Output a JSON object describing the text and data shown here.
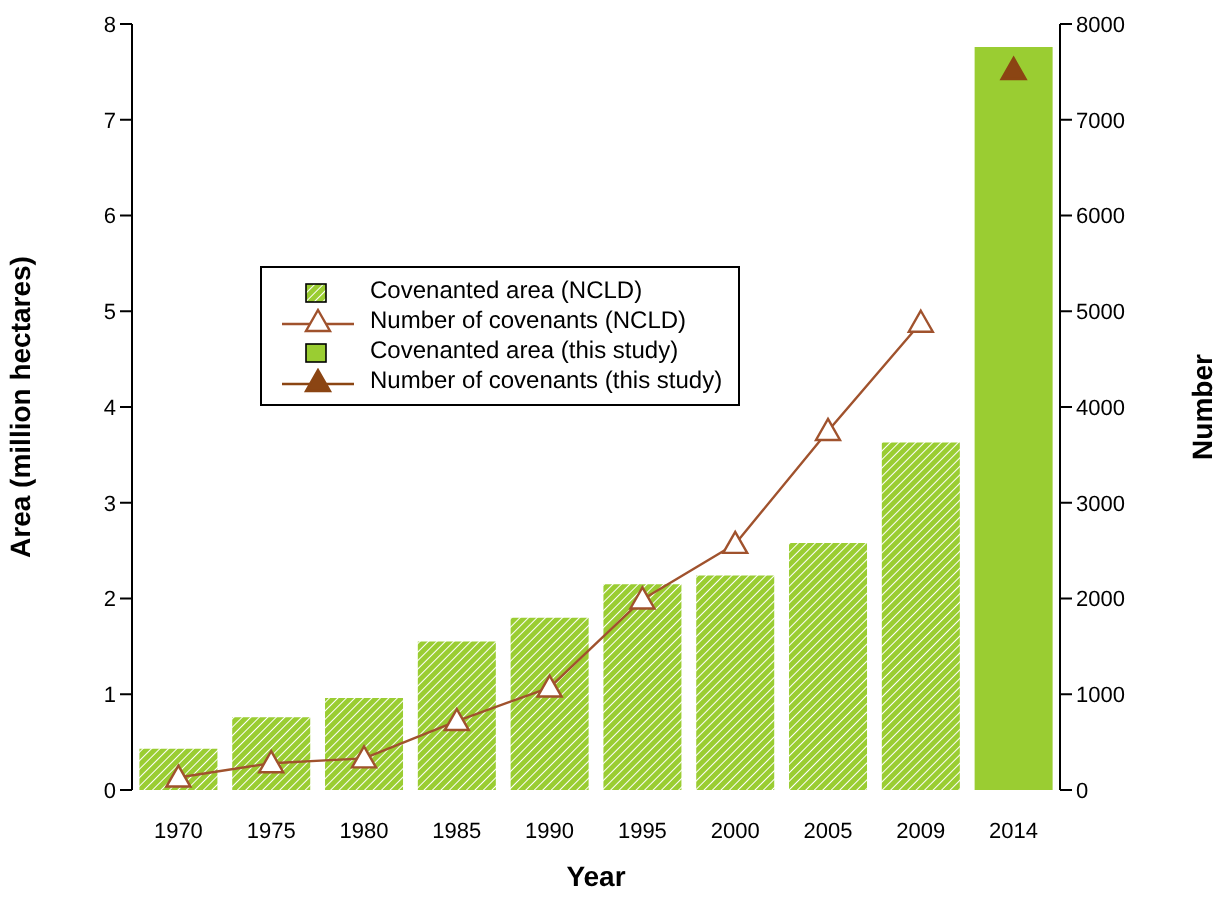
{
  "chart_data": {
    "type": "bar",
    "xlabel": "Year",
    "ylabel": "Area (million hectares)",
    "y2label": "Number",
    "categories": [
      "1970",
      "1975",
      "1980",
      "1985",
      "1990",
      "1995",
      "2000",
      "2005",
      "2009",
      "2014"
    ],
    "series": [
      {
        "name": "Covenanted area (NCLD)",
        "color": "#9acd32",
        "values": [
          0.43,
          0.76,
          0.96,
          1.55,
          1.8,
          2.15,
          2.24,
          2.58,
          3.63,
          null
        ]
      },
      {
        "name": "Number of covenants (NCLD)",
        "type": "line",
        "axis": "y2",
        "color": "#a0522d",
        "marker": "triangle",
        "values": [
          130,
          280,
          330,
          720,
          1070,
          1990,
          2570,
          3750,
          4880,
          null
        ]
      },
      {
        "name": "Covenanted area (this study)",
        "color": "#9acd32",
        "values": [
          null,
          null,
          null,
          null,
          null,
          null,
          null,
          null,
          null,
          7.76
        ]
      },
      {
        "name": "Number of covenants (this study)",
        "type": "line",
        "axis": "y2",
        "color": "#8b4513",
        "marker": "triangle",
        "values": [
          null,
          null,
          null,
          null,
          null,
          null,
          null,
          null,
          null,
          7520
        ]
      }
    ],
    "ylim": [
      0,
      8
    ],
    "yticks": [
      0,
      1,
      2,
      3,
      4,
      5,
      6,
      7,
      8
    ],
    "y2lim": [
      0,
      8000
    ],
    "y2ticks": [
      0,
      1000,
      2000,
      3000,
      4000,
      5000,
      6000,
      7000,
      8000
    ],
    "legend": "top left"
  }
}
